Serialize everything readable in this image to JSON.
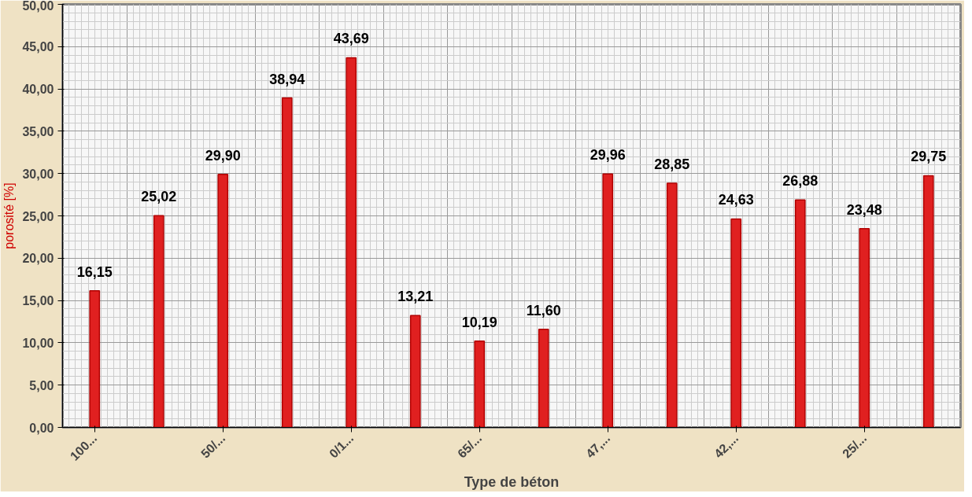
{
  "chart_data": {
    "type": "bar",
    "xlabel": "Type de béton",
    "ylabel": "porosité [%]",
    "categories": [
      "100...",
      null,
      "50/...",
      null,
      "0/1...",
      null,
      "65/...",
      null,
      "47,...",
      null,
      "42,...",
      null,
      "25/...",
      null
    ],
    "values": [
      16.15,
      25.02,
      29.9,
      38.94,
      43.69,
      13.21,
      10.19,
      11.6,
      29.96,
      28.85,
      24.63,
      26.88,
      23.48,
      29.75
    ],
    "color": "#e02020",
    "ylim": [
      0,
      50
    ],
    "yticks": [
      {
        "value": 0,
        "label": "0,00"
      },
      {
        "value": 5,
        "label": "5,00"
      },
      {
        "value": 10,
        "label": "10,00"
      },
      {
        "value": 15,
        "label": "15,00"
      },
      {
        "value": 20,
        "label": "20,00"
      },
      {
        "value": 25,
        "label": "25,00"
      },
      {
        "value": 30,
        "label": "30,00"
      },
      {
        "value": 35,
        "label": "35,00"
      },
      {
        "value": 40,
        "label": "40,00"
      },
      {
        "value": 45,
        "label": "45,00"
      },
      {
        "value": 50,
        "label": "50,00"
      }
    ],
    "value_labels": [
      "16,15",
      "25,02",
      "29,90",
      "38,94",
      "43,69",
      "13,21",
      "10,19",
      "11,60",
      "29,96",
      "28,85",
      "24,63",
      "26,88",
      "23,48",
      "29,75"
    ],
    "grid": true
  }
}
